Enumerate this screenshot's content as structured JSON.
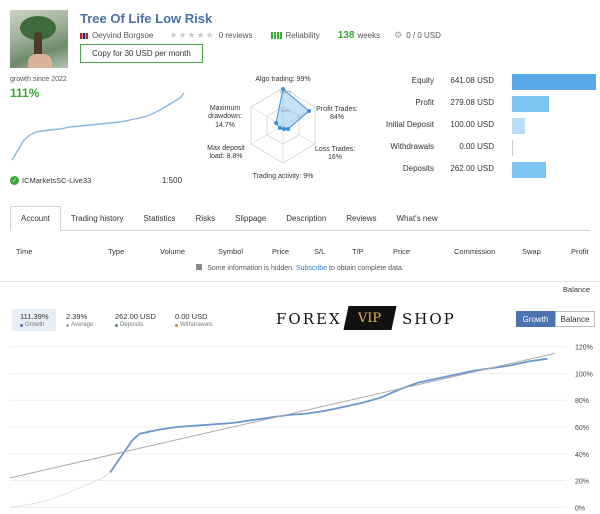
{
  "header": {
    "title": "Tree Of Life Low Risk",
    "author": "Oeyvind Borgsoe",
    "reviews": "0 reviews",
    "reliability_label": "Reliability",
    "weeks_value": "138",
    "weeks_label": "weeks",
    "subscribers_value": "0 / 0 USD",
    "copy_button": "Copy for 30 USD per month",
    "icons": [
      "flag-icon",
      "star-icon",
      "reliability-bars-icon",
      "gear-icon",
      "check-icon",
      "lock-icon"
    ]
  },
  "summary": {
    "growth_since": "growth since 2022",
    "growth_pct": "111%",
    "broker": "ICMarketsSC-Live33",
    "leverage": "1:500"
  },
  "radar": {
    "algo_trading": "Algo trading: 99%",
    "profit_trades": "Profit Trades:\n84%",
    "loss_trades": "Loss Trades:\n16%",
    "trading_activity": "Trading activity: 9%",
    "max_deposit_load": "Max deposit\nload: 8.8%",
    "max_drawdown": "Maximum\ndrawdown:\n14.7%",
    "ring_labels": [
      "100+%",
      "60%"
    ],
    "values": [
      0.99,
      0.84,
      0.16,
      0.09,
      0.088,
      0.147
    ]
  },
  "stats": [
    {
      "label": "Equity",
      "value": "641.08 USD",
      "bar_fraction": 1.0,
      "color": "#5aa9e6"
    },
    {
      "label": "Profit",
      "value": "279.08 USD",
      "bar_fraction": 0.435,
      "color": "#7cc4ef"
    },
    {
      "label": "Initial Deposit",
      "value": "100.00 USD",
      "bar_fraction": 0.156,
      "color": "#b9def5"
    },
    {
      "label": "Withdrawals",
      "value": "0.00 USD",
      "bar_fraction": 0.0,
      "color": "#b9def5"
    },
    {
      "label": "Deposits",
      "value": "262.00 USD",
      "bar_fraction": 0.409,
      "color": "#7cc4ef"
    }
  ],
  "tabs": [
    "Account",
    "Trading history",
    "Statistics",
    "Risks",
    "Slippage",
    "Description",
    "Reviews",
    "What's new"
  ],
  "table": {
    "columns": [
      "Time",
      "Type",
      "Volume",
      "Symbol",
      "Price",
      "S/L",
      "T/P",
      "Price",
      "Commission",
      "Swap",
      "Profit"
    ],
    "hidden_note_prefix": "Some information is hidden.",
    "hidden_note_link": "Subscribe",
    "hidden_note_suffix": "to obtain complete data.",
    "balance_label": "Balance"
  },
  "growth_stats": [
    {
      "value": "111.39%",
      "label": "Growth",
      "color": "#4a74b0"
    },
    {
      "value": "2.39%",
      "label": "Average",
      "color": "#aaaaaa"
    },
    {
      "value": "262.00 USD",
      "label": "Deposits",
      "color": "#4aa14a"
    },
    {
      "value": "0.00 USD",
      "label": "Withdrawals",
      "color": "#e07a2a"
    }
  ],
  "logo": {
    "left": "FOREX",
    "mid": "VIP",
    "right": "SHOP"
  },
  "chart_buttons": {
    "growth": "Growth",
    "balance": "Balance"
  },
  "chart_data": {
    "type": "line",
    "ylabel": "",
    "y_ticks": [
      "0%",
      "20%",
      "40%",
      "60%",
      "80%",
      "100%",
      "120%"
    ],
    "ylim": [
      -5,
      125
    ],
    "x_range": [
      0,
      150
    ],
    "series": [
      {
        "color": "#dde3ea",
        "points": [
          [
            0,
            0
          ],
          [
            5,
            2
          ],
          [
            10,
            5
          ],
          [
            15,
            10
          ],
          [
            20,
            16
          ],
          [
            25,
            22
          ],
          [
            27,
            26
          ]
        ]
      },
      {
        "color": "#6b97cf",
        "points": [
          [
            27,
            26
          ],
          [
            30,
            38
          ],
          [
            33,
            50
          ],
          [
            35,
            55
          ],
          [
            40,
            58
          ],
          [
            45,
            60
          ],
          [
            50,
            61
          ],
          [
            55,
            62
          ],
          [
            60,
            63
          ],
          [
            65,
            65
          ],
          [
            70,
            67
          ],
          [
            75,
            69
          ],
          [
            80,
            70
          ],
          [
            85,
            72
          ],
          [
            90,
            75
          ],
          [
            95,
            78
          ],
          [
            100,
            82
          ],
          [
            105,
            88
          ],
          [
            110,
            93
          ],
          [
            115,
            96
          ],
          [
            120,
            99
          ],
          [
            125,
            102
          ],
          [
            130,
            104
          ],
          [
            135,
            106
          ],
          [
            140,
            109
          ],
          [
            145,
            111
          ]
        ]
      },
      {
        "color": "#aaaaaa",
        "points": [
          [
            0,
            22
          ],
          [
            147,
            115
          ]
        ]
      }
    ]
  }
}
